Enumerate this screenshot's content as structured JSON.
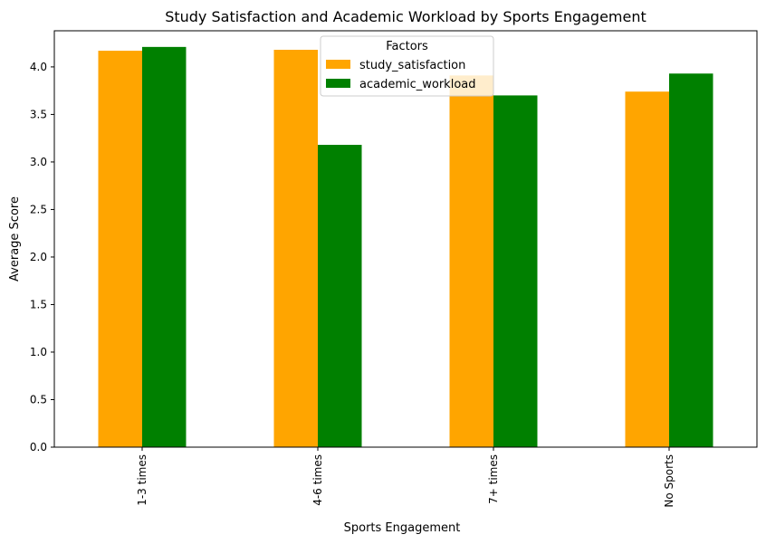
{
  "chart_data": {
    "type": "bar",
    "title": "Study Satisfaction and Academic Workload by Sports Engagement",
    "xlabel": "Sports Engagement",
    "ylabel": "Average Score",
    "categories": [
      "1-3 times",
      "4-6 times",
      "7+ times",
      "No Sports"
    ],
    "series": [
      {
        "name": "study_satisfaction",
        "color": "#ffa500",
        "values": [
          4.17,
          4.18,
          3.91,
          3.74
        ]
      },
      {
        "name": "academic_workload",
        "color": "#008000",
        "values": [
          4.21,
          3.18,
          3.7,
          3.93
        ]
      }
    ],
    "ylim": [
      0,
      4.38
    ],
    "yticks": [
      0.0,
      0.5,
      1.0,
      1.5,
      2.0,
      2.5,
      3.0,
      3.5,
      4.0
    ],
    "ytick_labels": [
      "0.0",
      "0.5",
      "1.0",
      "1.5",
      "2.0",
      "2.5",
      "3.0",
      "3.5",
      "4.0"
    ],
    "grid": false,
    "legend": {
      "title": "Factors",
      "placement": "top-center"
    }
  }
}
